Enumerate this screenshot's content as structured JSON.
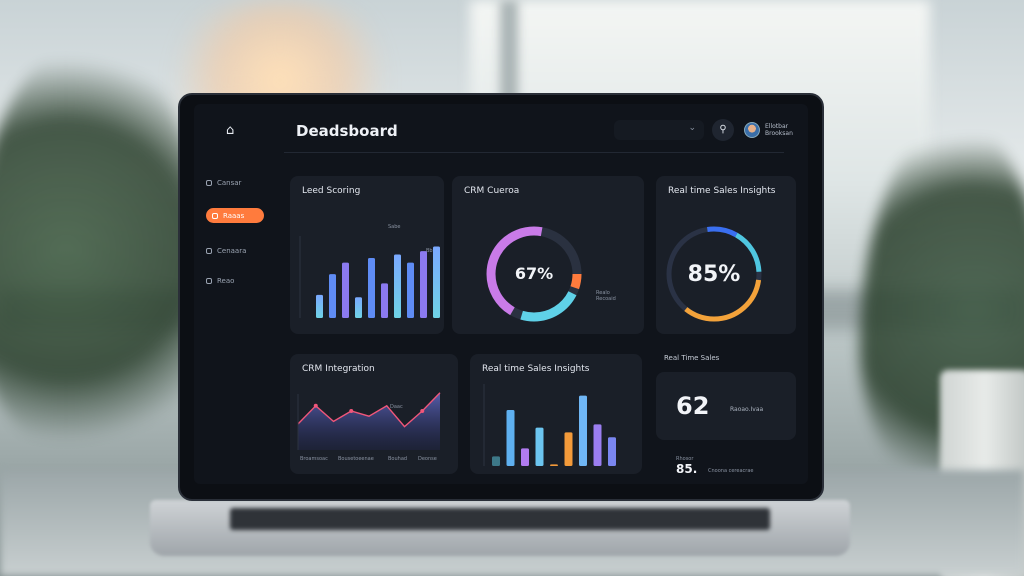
{
  "header": {
    "title": "Deadsboard",
    "user_line1": "Ellotbar",
    "user_line2": "Brooksan"
  },
  "sidebar": {
    "items": [
      {
        "label": "Cansar",
        "active": false
      },
      {
        "label": "Raaas",
        "active": true
      },
      {
        "label": "Cenaara",
        "active": false
      },
      {
        "label": "Reao",
        "active": false
      }
    ],
    "accent": "#ff7b3d"
  },
  "cards": {
    "lead_scoring": {
      "title": "Leed Scoring",
      "bars": [
        20,
        38,
        48,
        18,
        52,
        30,
        55,
        48,
        58,
        62,
        20
      ],
      "annot_1": "Sabe",
      "annot_2": "Bbx"
    },
    "crm_donut": {
      "title": "CRM Cueroa",
      "value": "67%",
      "legend": "Realo",
      "legend_2": "Recoaid"
    },
    "realtime_insights": {
      "title": "Real time Sales Insights",
      "value": "85%"
    },
    "crm_integration": {
      "title": "CRM Integration",
      "line": [
        20,
        34,
        22,
        30,
        26,
        34,
        18,
        30,
        44
      ],
      "x_labels": [
        "Broamsoac",
        "Bousetoeenae",
        "Bouhad",
        "Deonse"
      ],
      "annot": "Daac"
    },
    "realtime_bars": {
      "title": "Real time Sales Insights",
      "bars": [
        12,
        70,
        22,
        48,
        2,
        42,
        88,
        52,
        36
      ],
      "colors": [
        "#5fd1e8",
        "#5fb0f0",
        "#b07bf0",
        "#6cc5f0",
        "#f39a3a",
        "#f39a3a",
        "#6fb6f5",
        "#9b7ef0",
        "#7a86f0"
      ]
    },
    "realtime_sales": {
      "title": "Real Time Sales",
      "value": "62",
      "value_label": "Raoao.Ivaa",
      "sub_label": "Rhosor",
      "sub_value": "85.",
      "sub_caption": "Cnoona cereacrae"
    }
  },
  "icons": [
    "home-icon",
    "chevron-down-icon",
    "notification-icon",
    "avatar"
  ]
}
